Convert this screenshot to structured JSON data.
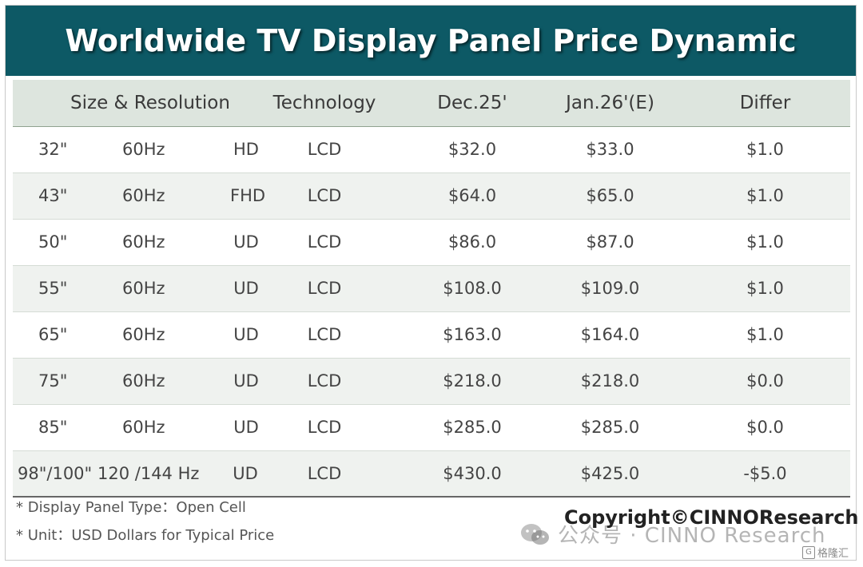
{
  "title": "Worldwide TV Display Panel Price Dynamic",
  "columns": {
    "size_resolution": "Size & Resolution",
    "technology": "Technology",
    "dec": "Dec.25'",
    "jan": "Jan.26'(E)",
    "differ": "Differ"
  },
  "rows": [
    {
      "size": "32\"",
      "hz": "60Hz",
      "res": "HD",
      "tech": "LCD",
      "dec": "$32.0",
      "jan": "$33.0",
      "differ": "$1.0"
    },
    {
      "size": "43\"",
      "hz": "60Hz",
      "res": "FHD",
      "tech": "LCD",
      "dec": "$64.0",
      "jan": "$65.0",
      "differ": "$1.0"
    },
    {
      "size": "50\"",
      "hz": "60Hz",
      "res": "UD",
      "tech": "LCD",
      "dec": "$86.0",
      "jan": "$87.0",
      "differ": "$1.0"
    },
    {
      "size": "55\"",
      "hz": "60Hz",
      "res": "UD",
      "tech": "LCD",
      "dec": "$108.0",
      "jan": "$109.0",
      "differ": "$1.0"
    },
    {
      "size": "65\"",
      "hz": "60Hz",
      "res": "UD",
      "tech": "LCD",
      "dec": "$163.0",
      "jan": "$164.0",
      "differ": "$1.0"
    },
    {
      "size": "75\"",
      "hz": "60Hz",
      "res": "UD",
      "tech": "LCD",
      "dec": "$218.0",
      "jan": "$218.0",
      "differ": "$0.0"
    },
    {
      "size": "85\"",
      "hz": "60Hz",
      "res": "UD",
      "tech": "LCD",
      "dec": "$285.0",
      "jan": "$285.0",
      "differ": "$0.0"
    },
    {
      "size": "98\"/100\"",
      "hz": "120 /144 Hz",
      "res": "UD",
      "tech": "LCD",
      "dec": "$430.0",
      "jan": "$425.0",
      "differ": "-$5.0"
    }
  ],
  "notes": [
    "* Display Panel Type：Open Cell",
    "* Unit：USD Dollars for Typical Price"
  ],
  "copyright": "Copyright©CINNOResearch",
  "watermark": {
    "icon": "wechat-icon",
    "text": "公众号 · CINNO Research",
    "logo_text": "格隆汇",
    "logo_icon": "gelonghui-logo-icon"
  },
  "colors": {
    "title_bg": "#0d5965",
    "header_bg": "#dde5de",
    "stripe_bg": "#eff2ef"
  }
}
